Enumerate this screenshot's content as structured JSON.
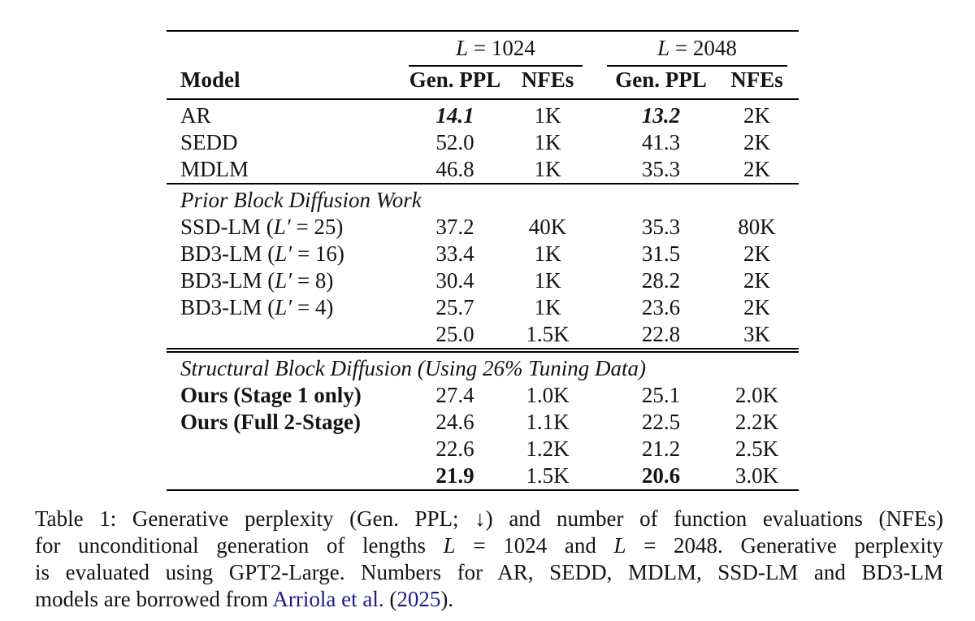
{
  "colors": {
    "text": "#141414",
    "link_blue": "#1a1a8c",
    "rule": "#000000",
    "background": "#ffffff"
  },
  "table": {
    "col_group_headers": [
      {
        "segments": [
          {
            "text": "L",
            "style": "math"
          },
          {
            "text": " = 1024",
            "style": "normal"
          }
        ]
      },
      {
        "segments": [
          {
            "text": "L",
            "style": "math"
          },
          {
            "text": " = 2048",
            "style": "normal"
          }
        ]
      }
    ],
    "col_headers": {
      "model": "Model",
      "sub": [
        "Gen. PPL",
        "NFEs",
        "Gen. PPL",
        "NFEs"
      ]
    },
    "sections": [
      {
        "header": null,
        "rule_above": "none",
        "rows": [
          {
            "model": [
              {
                "text": "AR",
                "style": "normal"
              }
            ],
            "values": [
              {
                "text": "14.1",
                "style": "bolditalic"
              },
              {
                "text": "1K",
                "style": "normal"
              },
              {
                "text": "13.2",
                "style": "bolditalic"
              },
              {
                "text": "2K",
                "style": "normal"
              }
            ]
          },
          {
            "model": [
              {
                "text": "SEDD",
                "style": "normal"
              }
            ],
            "values": [
              {
                "text": "52.0",
                "style": "normal"
              },
              {
                "text": "1K",
                "style": "normal"
              },
              {
                "text": "41.3",
                "style": "normal"
              },
              {
                "text": "2K",
                "style": "normal"
              }
            ]
          },
          {
            "model": [
              {
                "text": "MDLM",
                "style": "normal"
              }
            ],
            "values": [
              {
                "text": "46.8",
                "style": "normal"
              },
              {
                "text": "1K",
                "style": "normal"
              },
              {
                "text": "35.3",
                "style": "normal"
              },
              {
                "text": "2K",
                "style": "normal"
              }
            ]
          }
        ]
      },
      {
        "header": [
          {
            "text": "Prior Block Diffusion Work",
            "style": "italic"
          }
        ],
        "rule_above": "single",
        "rows": [
          {
            "model": [
              {
                "text": "SSD-LM (",
                "style": "normal"
              },
              {
                "text": "L′",
                "style": "math"
              },
              {
                "text": " = 25)",
                "style": "normal"
              }
            ],
            "values": [
              {
                "text": "37.2",
                "style": "normal"
              },
              {
                "text": "40K",
                "style": "normal"
              },
              {
                "text": "35.3",
                "style": "normal"
              },
              {
                "text": "80K",
                "style": "normal"
              }
            ]
          },
          {
            "model": [
              {
                "text": "BD3-LM (",
                "style": "normal"
              },
              {
                "text": "L′",
                "style": "math"
              },
              {
                "text": " = 16)",
                "style": "normal"
              }
            ],
            "values": [
              {
                "text": "33.4",
                "style": "normal"
              },
              {
                "text": "1K",
                "style": "normal"
              },
              {
                "text": "31.5",
                "style": "normal"
              },
              {
                "text": "2K",
                "style": "normal"
              }
            ]
          },
          {
            "model": [
              {
                "text": "BD3-LM (",
                "style": "normal"
              },
              {
                "text": "L′",
                "style": "math"
              },
              {
                "text": " = 8)",
                "style": "normal"
              }
            ],
            "values": [
              {
                "text": "30.4",
                "style": "normal"
              },
              {
                "text": "1K",
                "style": "normal"
              },
              {
                "text": "28.2",
                "style": "normal"
              },
              {
                "text": "2K",
                "style": "normal"
              }
            ]
          },
          {
            "model": [
              {
                "text": "BD3-LM (",
                "style": "normal"
              },
              {
                "text": "L′",
                "style": "math"
              },
              {
                "text": " = 4)",
                "style": "normal"
              }
            ],
            "values": [
              {
                "text": "25.7",
                "style": "normal"
              },
              {
                "text": "1K",
                "style": "normal"
              },
              {
                "text": "23.6",
                "style": "normal"
              },
              {
                "text": "2K",
                "style": "normal"
              }
            ]
          },
          {
            "model": [],
            "values": [
              {
                "text": "25.0",
                "style": "normal"
              },
              {
                "text": "1.5K",
                "style": "normal"
              },
              {
                "text": "22.8",
                "style": "normal"
              },
              {
                "text": "3K",
                "style": "normal"
              }
            ]
          }
        ]
      },
      {
        "header": [
          {
            "text": "Structural Block Diffusion (Using 26% Tuning Data)",
            "style": "italic"
          }
        ],
        "rule_above": "double",
        "rows": [
          {
            "model": [
              {
                "text": "Ours (Stage 1 only)",
                "style": "bold"
              }
            ],
            "values": [
              {
                "text": "27.4",
                "style": "normal"
              },
              {
                "text": "1.0K",
                "style": "normal"
              },
              {
                "text": "25.1",
                "style": "normal"
              },
              {
                "text": "2.0K",
                "style": "normal"
              }
            ]
          },
          {
            "model": [
              {
                "text": "Ours (Full 2-Stage)",
                "style": "bold"
              }
            ],
            "values": [
              {
                "text": "24.6",
                "style": "normal"
              },
              {
                "text": "1.1K",
                "style": "normal"
              },
              {
                "text": "22.5",
                "style": "normal"
              },
              {
                "text": "2.2K",
                "style": "normal"
              }
            ]
          },
          {
            "model": [],
            "values": [
              {
                "text": "22.6",
                "style": "normal"
              },
              {
                "text": "1.2K",
                "style": "normal"
              },
              {
                "text": "21.2",
                "style": "normal"
              },
              {
                "text": "2.5K",
                "style": "normal"
              }
            ]
          },
          {
            "model": [],
            "values": [
              {
                "text": "21.9",
                "style": "bold"
              },
              {
                "text": "1.5K",
                "style": "normal"
              },
              {
                "text": "20.6",
                "style": "bold"
              },
              {
                "text": "3.0K",
                "style": "normal"
              }
            ]
          }
        ]
      }
    ]
  },
  "caption": {
    "lines": [
      {
        "justify": true,
        "segments": [
          {
            "text": "Table 1: Generative perplexity (Gen. PPL; ↓) and number of function evaluations (NFEs)",
            "style": "normal"
          }
        ]
      },
      {
        "justify": true,
        "segments": [
          {
            "text": "for unconditional generation of lengths ",
            "style": "normal"
          },
          {
            "text": "L",
            "style": "math"
          },
          {
            "text": " = 1024 and ",
            "style": "normal"
          },
          {
            "text": "L",
            "style": "math"
          },
          {
            "text": " = 2048. Generative perplexity",
            "style": "normal"
          }
        ]
      },
      {
        "justify": true,
        "segments": [
          {
            "text": "is evaluated using GPT2-Large. Numbers for AR, SEDD, MDLM, SSD-LM and BD3-LM",
            "style": "normal"
          }
        ]
      },
      {
        "justify": false,
        "segments": [
          {
            "text": "models are borrowed from ",
            "style": "normal"
          },
          {
            "text": "Arriola et al.",
            "style": "link"
          },
          {
            "text": " (",
            "style": "normal"
          },
          {
            "text": "2025",
            "style": "link"
          },
          {
            "text": ").",
            "style": "normal"
          }
        ]
      }
    ]
  }
}
